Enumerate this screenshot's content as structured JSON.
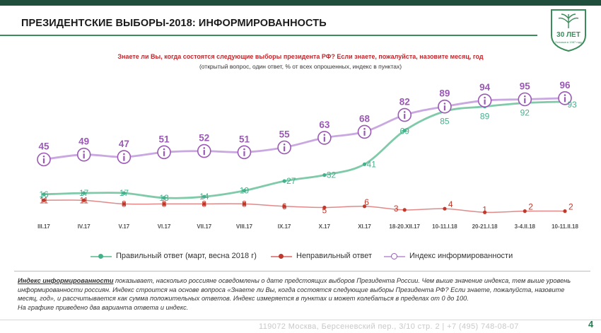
{
  "header": {
    "title": "ПРЕЗИДЕНТСКИЕ ВЫБОРЫ-2018: ИНФОРМИРОВАННОСТЬ",
    "logo_text": "30 ЛЕТ",
    "logo_subtext": "Основан в 1987 году"
  },
  "question": {
    "text": "Знаете ли Вы, когда состоятся следующие выборы президента РФ? Если знаете, пожалуйста, назовите месяц, год",
    "subtext": "(открытый вопрос, один ответ, % от всех опрошенных, индекс в пунктах)"
  },
  "colors": {
    "index": "#9b59b6",
    "correct": "#45b08c",
    "wrong": "#c0392b",
    "index_line": "#c9a7e0",
    "correct_line": "#7fcaa9",
    "wrong_line": "#e08a8a"
  },
  "chart_data": {
    "type": "line",
    "categories": [
      "III.17",
      "IV.17",
      "V.17",
      "VI.17",
      "VII.17",
      "VIII.17",
      "IX.17",
      "X.17",
      "XI.17",
      "18-20.XII.17",
      "10-11.I.18",
      "20-21.I.18",
      "3-4.II.18",
      "10-11.II.18"
    ],
    "series": [
      {
        "name": "Правильный ответ (март, весна 2018 г)",
        "key": "correct",
        "values": [
          16,
          17,
          17,
          13,
          14,
          19,
          27,
          32,
          41,
          69,
          85,
          89,
          92,
          93
        ]
      },
      {
        "name": "Неправильный ответ",
        "key": "wrong",
        "values": [
          11,
          11,
          8,
          8,
          8,
          8,
          6,
          5,
          6,
          3,
          4,
          1,
          2,
          2
        ]
      },
      {
        "name": "Индекс информированности",
        "key": "index",
        "values": [
          45,
          49,
          47,
          51,
          52,
          51,
          55,
          63,
          68,
          82,
          89,
          94,
          95,
          96
        ]
      }
    ]
  },
  "legend": {
    "correct": "Правильный ответ (март, весна 2018 г)",
    "wrong": "Неправильный ответ",
    "index": "Индекс информированности"
  },
  "footnote": {
    "term": "Индекс информированности",
    "text": " показывает, насколько россияне осведомлены о дате предстоящих выборов Президента России. Чем выше значение индекса, тем выше уровень информированности россиян. Индекс строится на основе вопроса «Знаете ли Вы, когда состоятся следующие выборы Президента РФ? Если знаете, пожалуйста, назовите месяц, год», и рассчитывается как сумма положительных ответов. Индекс измеряется в пунктах и может колебаться в пределах от 0 до 100.",
    "line2": "На графике приведено два варианта ответа и индекс."
  },
  "footer": {
    "address": "119072 Москва, Берсеневский пер., 3/10 стр. 2  |  +7 (495) 748-08-07",
    "page": "4"
  }
}
